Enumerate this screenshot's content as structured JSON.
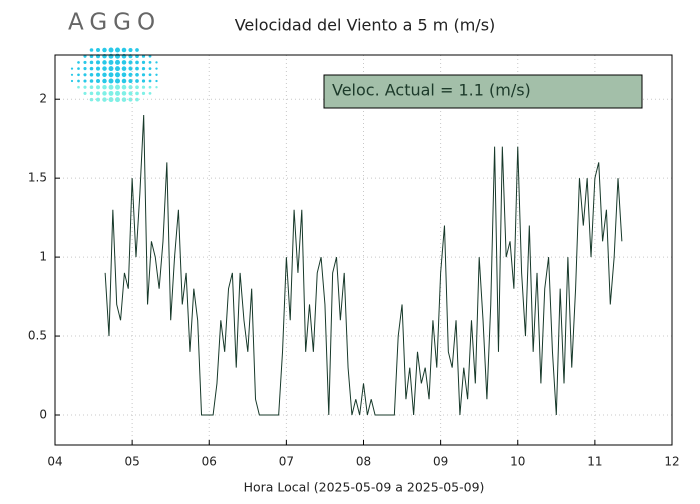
{
  "logo": "AGGO",
  "chart_data": {
    "type": "line",
    "title": "Velocidad del Viento a 5 m (m/s)",
    "xlabel": "Hora Local (2025-05-09 a 2025-05-09)",
    "annotation": "Veloc. Actual = 1.1 (m/s)",
    "color": "#17392a",
    "grid": true,
    "xlim": [
      4,
      12
    ],
    "ylim": [
      -0.19,
      2.28
    ],
    "xticks": [
      {
        "value": 4,
        "label": "04"
      },
      {
        "value": 5,
        "label": "05"
      },
      {
        "value": 6,
        "label": "06"
      },
      {
        "value": 7,
        "label": "07"
      },
      {
        "value": 8,
        "label": "08"
      },
      {
        "value": 9,
        "label": "09"
      },
      {
        "value": 10,
        "label": "10"
      },
      {
        "value": 11,
        "label": "11"
      },
      {
        "value": 12,
        "label": "12"
      }
    ],
    "yticks": [
      0,
      0.5,
      1,
      1.5,
      2
    ],
    "x": [
      4.65,
      4.7,
      4.75,
      4.8,
      4.85,
      4.9,
      4.95,
      5.0,
      5.05,
      5.1,
      5.15,
      5.2,
      5.25,
      5.3,
      5.35,
      5.4,
      5.45,
      5.5,
      5.55,
      5.6,
      5.65,
      5.7,
      5.75,
      5.8,
      5.85,
      5.9,
      5.95,
      6.0,
      6.05,
      6.1,
      6.15,
      6.2,
      6.25,
      6.3,
      6.35,
      6.4,
      6.45,
      6.5,
      6.55,
      6.6,
      6.65,
      6.7,
      6.75,
      6.8,
      6.85,
      6.9,
      6.95,
      7.0,
      7.05,
      7.1,
      7.15,
      7.2,
      7.25,
      7.3,
      7.35,
      7.4,
      7.45,
      7.5,
      7.55,
      7.6,
      7.65,
      7.7,
      7.75,
      7.8,
      7.85,
      7.9,
      7.95,
      8.0,
      8.05,
      8.1,
      8.15,
      8.2,
      8.25,
      8.3,
      8.35,
      8.4,
      8.45,
      8.5,
      8.55,
      8.6,
      8.65,
      8.7,
      8.75,
      8.8,
      8.85,
      8.9,
      8.95,
      9.0,
      9.05,
      9.1,
      9.15,
      9.2,
      9.25,
      9.3,
      9.35,
      9.4,
      9.45,
      9.5,
      9.55,
      9.6,
      9.65,
      9.7,
      9.75,
      9.8,
      9.85,
      9.9,
      9.95,
      10.0,
      10.05,
      10.1,
      10.15,
      10.2,
      10.25,
      10.3,
      10.35,
      10.4,
      10.45,
      10.5,
      10.55,
      10.6,
      10.65,
      10.7,
      10.75,
      10.8,
      10.85,
      10.9,
      10.95,
      11.0,
      11.05,
      11.1,
      11.15,
      11.2,
      11.25,
      11.3,
      11.35
    ],
    "values": [
      0.9,
      0.5,
      1.3,
      0.7,
      0.6,
      0.9,
      0.8,
      1.5,
      1.0,
      1.4,
      1.9,
      0.7,
      1.1,
      1.0,
      0.8,
      1.1,
      1.6,
      0.6,
      1.0,
      1.3,
      0.7,
      0.9,
      0.4,
      0.8,
      0.6,
      0.0,
      0.0,
      0.0,
      0.0,
      0.2,
      0.6,
      0.4,
      0.8,
      0.9,
      0.3,
      0.9,
      0.6,
      0.4,
      0.8,
      0.1,
      0.0,
      0.0,
      0.0,
      0.0,
      0.0,
      0.0,
      0.4,
      1.0,
      0.6,
      1.3,
      0.9,
      1.3,
      0.4,
      0.7,
      0.4,
      0.9,
      1.0,
      0.7,
      0.0,
      0.9,
      1.0,
      0.6,
      0.9,
      0.3,
      0.0,
      0.1,
      0.0,
      0.2,
      0.0,
      0.1,
      0.0,
      0.0,
      0.0,
      0.0,
      0.0,
      0.0,
      0.5,
      0.7,
      0.1,
      0.3,
      0.0,
      0.4,
      0.2,
      0.3,
      0.1,
      0.6,
      0.3,
      0.9,
      1.2,
      0.4,
      0.3,
      0.6,
      0.0,
      0.3,
      0.1,
      0.6,
      0.2,
      1.0,
      0.6,
      0.1,
      0.7,
      1.7,
      0.4,
      1.7,
      1.0,
      1.1,
      0.8,
      1.7,
      0.9,
      0.5,
      1.2,
      0.4,
      0.9,
      0.2,
      0.8,
      1.0,
      0.4,
      0.0,
      0.8,
      0.2,
      1.0,
      0.3,
      0.8,
      1.5,
      1.2,
      1.5,
      1.0,
      1.5,
      1.6,
      1.1,
      1.3,
      0.7,
      1.0,
      1.5,
      1.1
    ]
  }
}
